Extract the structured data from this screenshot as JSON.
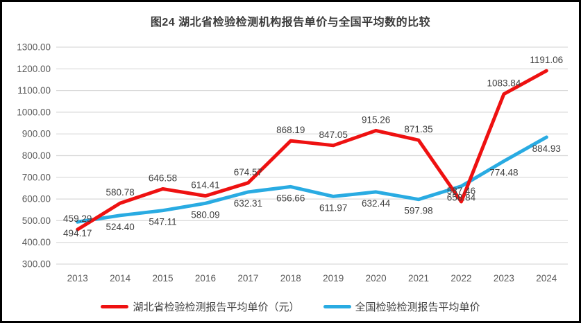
{
  "title": "图24 湖北省检验检测机构报告单价与全国平均数的比较",
  "colors": {
    "border": "#000000",
    "background": "#ffffff",
    "gridline": "#d9d9d9",
    "axis_text": "#595959",
    "data_label_text": "#404040"
  },
  "chart_data": {
    "type": "line",
    "title": "图24 湖北省检验检测机构报告单价与全国平均数的比较",
    "categories": [
      "2013",
      "2014",
      "2015",
      "2016",
      "2017",
      "2018",
      "2019",
      "2020",
      "2021",
      "2022",
      "2023",
      "2024"
    ],
    "series": [
      {
        "key": "hubei",
        "name": "湖北省检验检测报告平均单价（元）",
        "color": "#ee1111",
        "label_position": "above",
        "values": [
          459.29,
          580.78,
          646.58,
          614.41,
          674.57,
          868.19,
          847.05,
          915.26,
          871.35,
          587.46,
          1083.84,
          1191.06
        ]
      },
      {
        "key": "national",
        "name": "全国检验检测报告平均单价",
        "color": "#29abe2",
        "label_position": "below",
        "values": [
          494.17,
          524.4,
          547.11,
          580.09,
          632.31,
          656.66,
          611.97,
          632.44,
          597.98,
          658.84,
          774.48,
          884.93
        ]
      }
    ],
    "ylim": [
      300,
      1300
    ],
    "ytick_step": 100,
    "ytick_decimals": 2,
    "data_label_decimals": 2,
    "grid": "horizontal",
    "legend_position": "bottom",
    "xlabel": "",
    "ylabel": ""
  }
}
